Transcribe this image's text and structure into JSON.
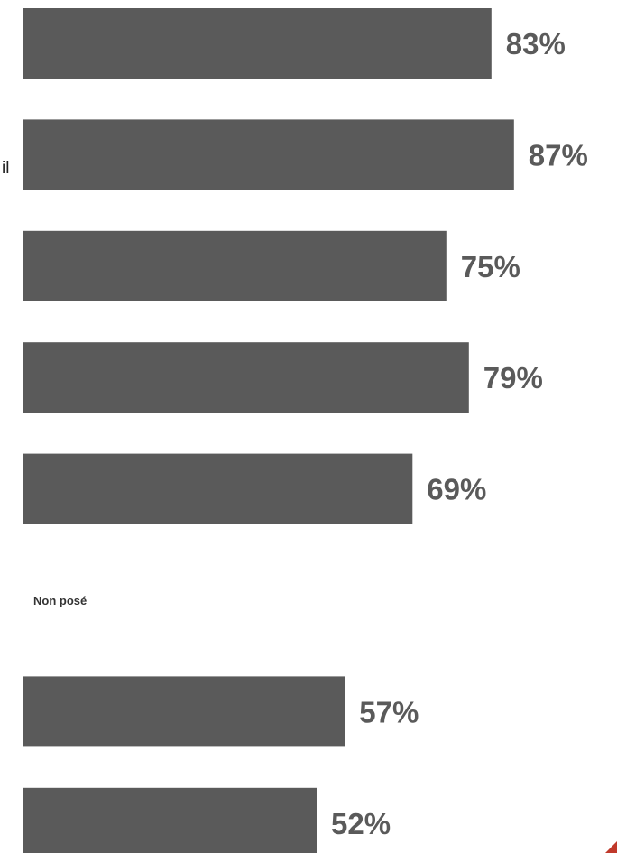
{
  "chart_data": {
    "type": "bar",
    "orientation": "horizontal",
    "colors": {
      "bar": "#5a5a5a",
      "value_text": "#5a5a5a"
    },
    "xlim": [
      0,
      100
    ],
    "cut_label": "il",
    "not_asked_note": "Non posé",
    "rows": [
      {
        "value": 83,
        "label": "83%"
      },
      {
        "value": 87,
        "label": "87%"
      },
      {
        "value": 75,
        "label": "75%"
      },
      {
        "value": 79,
        "label": "79%"
      },
      {
        "value": 69,
        "label": "69%"
      },
      {
        "value": null,
        "label": ""
      },
      {
        "value": 57,
        "label": "57%"
      },
      {
        "value": 52,
        "label": "52%"
      }
    ]
  }
}
